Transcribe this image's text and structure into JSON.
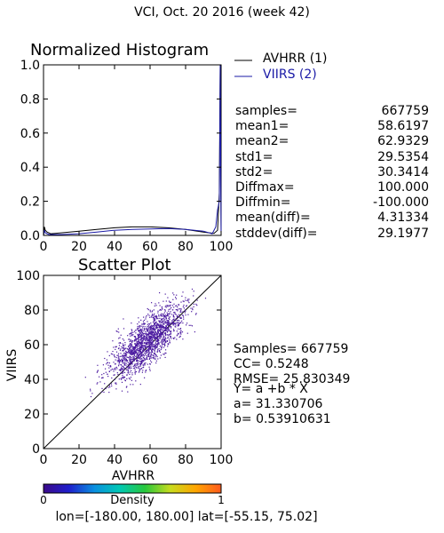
{
  "title": "VCI,  Oct. 20 2016 (week 42)",
  "colors": {
    "avhrr": "#000000",
    "viirs": "#1a1aa6",
    "scatter_point": "#4b1aa0",
    "axis": "#000000"
  },
  "chart_data": [
    {
      "type": "line",
      "title": "Normalized Histogram",
      "xlim": [
        0,
        100
      ],
      "ylim": [
        0,
        1.0
      ],
      "xticks": [
        0,
        20,
        40,
        60,
        80,
        100
      ],
      "yticks": [
        0.0,
        0.2,
        0.4,
        0.6,
        0.8,
        1.0
      ],
      "legend_position": "outside-right",
      "series": [
        {
          "name": "AVHRR (1)",
          "color": "#000000",
          "points": [
            [
              0,
              0.0
            ],
            [
              0.5,
              0.05
            ],
            [
              1,
              0.03
            ],
            [
              2,
              0.02
            ],
            [
              4,
              0.01
            ],
            [
              10,
              0.015
            ],
            [
              20,
              0.025
            ],
            [
              30,
              0.035
            ],
            [
              40,
              0.045
            ],
            [
              50,
              0.05
            ],
            [
              60,
              0.05
            ],
            [
              70,
              0.045
            ],
            [
              80,
              0.035
            ],
            [
              90,
              0.02
            ],
            [
              96,
              0.012
            ],
            [
              98,
              0.03
            ],
            [
              99,
              0.25
            ],
            [
              99.5,
              1.0
            ],
            [
              100,
              0.0
            ]
          ]
        },
        {
          "name": "VIIRS (2)",
          "color": "#1a1aa6",
          "points": [
            [
              0,
              0.0
            ],
            [
              0.5,
              0.03
            ],
            [
              1,
              0.015
            ],
            [
              3,
              0.005
            ],
            [
              10,
              0.005
            ],
            [
              20,
              0.01
            ],
            [
              30,
              0.02
            ],
            [
              40,
              0.03
            ],
            [
              50,
              0.035
            ],
            [
              60,
              0.038
            ],
            [
              70,
              0.04
            ],
            [
              80,
              0.035
            ],
            [
              90,
              0.025
            ],
            [
              95,
              0.01
            ],
            [
              97,
              0.05
            ],
            [
              98,
              0.15
            ],
            [
              99,
              0.2
            ],
            [
              99.5,
              1.0
            ],
            [
              100,
              0.0
            ]
          ]
        }
      ],
      "stats": [
        {
          "label": "samples=",
          "value": "667759"
        },
        {
          "label": "mean1=",
          "value": "58.6197"
        },
        {
          "label": "mean2=",
          "value": "62.9329"
        },
        {
          "label": "std1=",
          "value": "29.5354"
        },
        {
          "label": "std2=",
          "value": "30.3414"
        },
        {
          "label": "Diffmax=",
          "value": "100.000"
        },
        {
          "label": "Diffmin=",
          "value": "-100.000"
        },
        {
          "label": "mean(diff)=",
          "value": "4.31334"
        },
        {
          "label": "stddev(diff)=",
          "value": "29.1977"
        }
      ]
    },
    {
      "type": "scatter",
      "title": "Scatter Plot",
      "xlabel": "AVHRR",
      "ylabel": "VIIRS",
      "xlim": [
        0,
        100
      ],
      "ylim": [
        0,
        100
      ],
      "xticks": [
        0,
        20,
        40,
        60,
        80,
        100
      ],
      "yticks": [
        0,
        20,
        40,
        60,
        80,
        100
      ],
      "one_to_one_line": true,
      "points_summary": {
        "center": [
          58,
          62
        ],
        "spread": 10.5,
        "correlation_shape": 0.75
      },
      "fit": {
        "equation": "Y= a +b * X",
        "a": "a= 31.330706",
        "b": "b= 0.53910631",
        "a_value": 31.330706,
        "b_value": 0.53910631
      },
      "stats": [
        "Samples= 667759",
        "CC=  0.5248",
        "RMSE= 25.830349"
      ]
    }
  ],
  "colorbar": {
    "label": "Density",
    "min_label": "0",
    "max_label": "1",
    "colors": [
      "#3b0a8a",
      "#1f1fcc",
      "#0a8fe0",
      "#00c8b4",
      "#28c83c",
      "#c8dc1e",
      "#ffa500",
      "#ff5a1e"
    ]
  },
  "footer": "lon=[-180.00, 180.00] lat=[-55.15, 75.02]"
}
